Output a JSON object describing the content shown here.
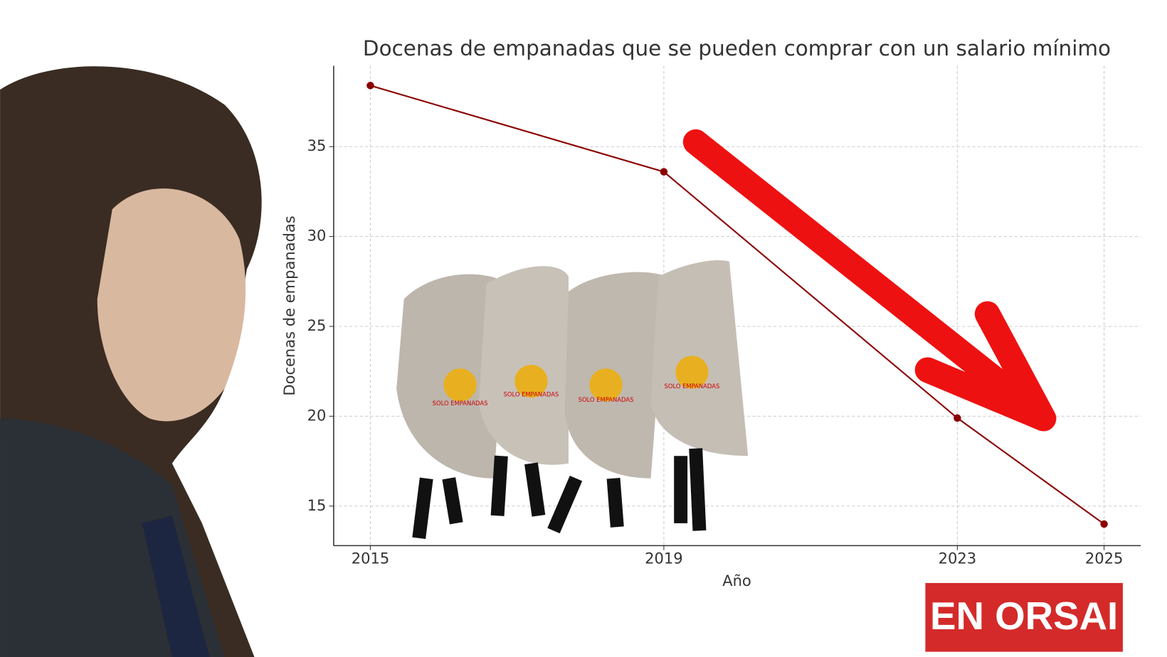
{
  "chart_data": {
    "type": "line",
    "title": "Docenas de empanadas que se pueden comprar con un salario mínimo",
    "x_label": "Año",
    "y_label": "Docenas de empanadas",
    "x": [
      2015,
      2019,
      2023,
      2025
    ],
    "series": [
      {
        "name": "Docenas de empanadas",
        "color": "#8b0000",
        "values": [
          38.4,
          33.6,
          19.9,
          14.0
        ]
      }
    ],
    "xlim": [
      2014.5,
      2025.5
    ],
    "xticks": [
      2015,
      2019,
      2023,
      2025
    ],
    "ylim": [
      12.8,
      39.5
    ],
    "yticks": [
      15,
      20,
      25,
      30,
      35
    ],
    "grid": true
  },
  "costume_label": "SOLO EMPANADAS",
  "logo": "EN ORSAI"
}
